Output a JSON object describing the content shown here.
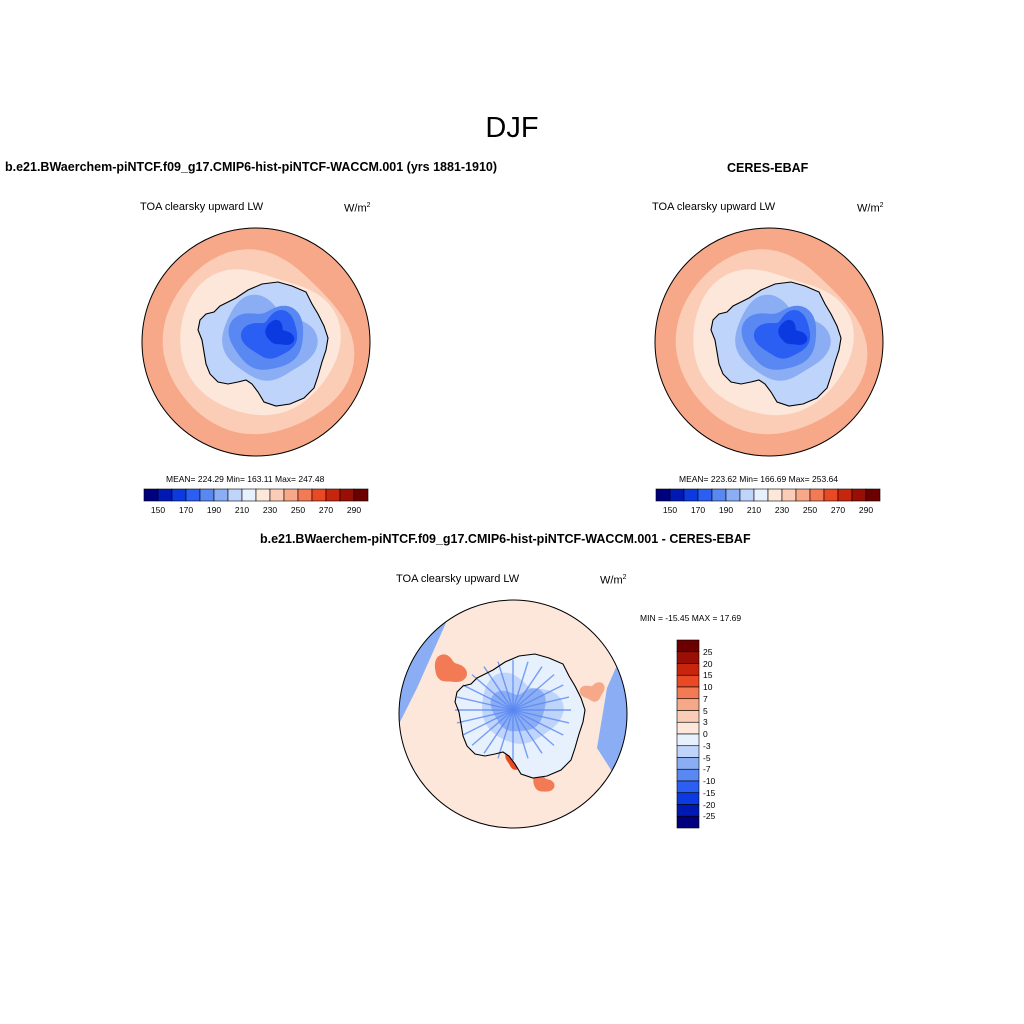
{
  "page": {
    "title": "DJF"
  },
  "panels": [
    {
      "title": "b.e21.BWaerchem-piNTCF.f09_g17.CMIP6-hist-piNTCF-WACCM.001 (yrs 1881-1910)",
      "variable": "TOA clearsky upward LW",
      "units_base": "W/m",
      "units_exp": "2",
      "stats": "MEAN= 224.29  Min= 163.11  Max= 247.48"
    },
    {
      "title": "CERES-EBAF",
      "variable": "TOA clearsky upward LW",
      "units_base": "W/m",
      "units_exp": "2",
      "stats": "MEAN= 223.62  Min= 166.69  Max= 253.64"
    },
    {
      "title": "b.e21.BWaerchem-piNTCF.f09_g17.CMIP6-hist-piNTCF-WACCM.001 - CERES-EBAF",
      "variable": "TOA clearsky upward LW",
      "units_base": "W/m",
      "units_exp": "2",
      "stats": "MIN = -15.45 MAX =  17.69"
    }
  ],
  "chart_data": [
    {
      "type": "heatmap",
      "projection": "south-polar-stereographic",
      "title": "b.e21.BWaerchem-piNTCF.f09_g17.CMIP6-hist-piNTCF-WACCM.001 (yrs 1881-1910)",
      "variable": "TOA clearsky upward LW",
      "units": "W/m2",
      "mean": 224.29,
      "min": 163.11,
      "max": 247.48,
      "levels": [
        150,
        160,
        170,
        180,
        190,
        200,
        210,
        220,
        230,
        240,
        250,
        260,
        270,
        280,
        290
      ],
      "colorbar_labels": [
        "150",
        "170",
        "190",
        "210",
        "230",
        "250",
        "270",
        "290"
      ],
      "colors": [
        "#00007f",
        "#0019b3",
        "#0b3ae0",
        "#2b5ef2",
        "#5a88f2",
        "#8aadf4",
        "#bfd4fa",
        "#e7f1fd",
        "#fde7da",
        "#fbcdb6",
        "#f7a889",
        "#f27b56",
        "#e94a25",
        "#c7260d",
        "#9a0f05",
        "#6c0000"
      ]
    },
    {
      "type": "heatmap",
      "projection": "south-polar-stereographic",
      "title": "CERES-EBAF",
      "variable": "TOA clearsky upward LW",
      "units": "W/m2",
      "mean": 223.62,
      "min": 166.69,
      "max": 253.64,
      "levels": [
        150,
        160,
        170,
        180,
        190,
        200,
        210,
        220,
        230,
        240,
        250,
        260,
        270,
        280,
        290
      ],
      "colorbar_labels": [
        "150",
        "170",
        "190",
        "210",
        "230",
        "250",
        "270",
        "290"
      ],
      "colors": [
        "#00007f",
        "#0019b3",
        "#0b3ae0",
        "#2b5ef2",
        "#5a88f2",
        "#8aadf4",
        "#bfd4fa",
        "#e7f1fd",
        "#fde7da",
        "#fbcdb6",
        "#f7a889",
        "#f27b56",
        "#e94a25",
        "#c7260d",
        "#9a0f05",
        "#6c0000"
      ]
    },
    {
      "type": "heatmap",
      "projection": "south-polar-stereographic",
      "title": "b.e21.BWaerchem-piNTCF.f09_g17.CMIP6-hist-piNTCF-WACCM.001 - CERES-EBAF",
      "variable": "TOA clearsky upward LW",
      "units": "W/m2",
      "min": -15.45,
      "max": 17.69,
      "levels": [
        -25,
        -20,
        -15,
        -10,
        -7,
        -5,
        -3,
        0,
        3,
        5,
        7,
        10,
        15,
        20,
        25
      ],
      "colorbar_labels": [
        "25",
        "20",
        "15",
        "10",
        "7",
        "5",
        "3",
        "0",
        "-3",
        "-5",
        "-7",
        "-10",
        "-15",
        "-20",
        "-25"
      ],
      "colors": [
        "#6c0000",
        "#9a0f05",
        "#c7260d",
        "#e94a25",
        "#f27b56",
        "#f7a889",
        "#fbcdb6",
        "#fde7da",
        "#e7f1fd",
        "#bfd4fa",
        "#8aadf4",
        "#5a88f2",
        "#2b5ef2",
        "#0b3ae0",
        "#0019b3",
        "#00007f"
      ]
    }
  ]
}
